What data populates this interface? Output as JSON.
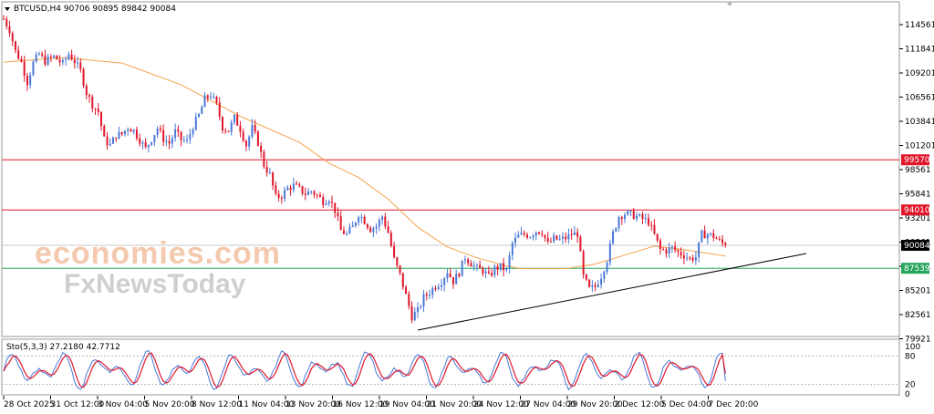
{
  "header": {
    "symbol_line": "BTCUSD,H4  90706 90895 89842 90084"
  },
  "watermark": {
    "line1": "economies.com",
    "line2": "FxNewsToday"
  },
  "oscillator": {
    "label": "Sto(5,3,3) 27.2180 42.7712",
    "levels": [
      "100",
      "80",
      "20",
      "0"
    ]
  },
  "price_axis": {
    "ticks": [
      "114561",
      "111841",
      "109201",
      "106561",
      "103841",
      "101201",
      "98561",
      "95841",
      "93201",
      "90561",
      "87841",
      "85201",
      "82561",
      "79921"
    ],
    "tags": [
      {
        "label": "99570",
        "value": 99570,
        "color": "#e0162b"
      },
      {
        "label": "94010",
        "value": 94010,
        "color": "#e0162b"
      },
      {
        "label": "90084",
        "value": 90084,
        "color": "#000000"
      },
      {
        "label": "87539",
        "value": 87539,
        "color": "#26a65b"
      }
    ]
  },
  "time_axis": {
    "labels": [
      "28 Oct 2025",
      "31 Oct 12:00",
      "3 Nov 04:00",
      "5 Nov 20:00",
      "8 Nov 12:00",
      "11 Nov 04:00",
      "13 Nov 20:00",
      "16 Nov 12:00",
      "19 Nov 04:00",
      "21 Nov 20:00",
      "24 Nov 12:00",
      "27 Nov 04:00",
      "29 Nov 20:00",
      "2 Dec 12:00",
      "5 Dec 04:00",
      "7 Dec 20:00"
    ]
  },
  "chart_data": {
    "type": "candlestick",
    "timeframe": "H4",
    "horizontal_lines": [
      {
        "value": 99570,
        "color": "#e0162b"
      },
      {
        "value": 94010,
        "color": "#e0162b"
      },
      {
        "value": 87539,
        "color": "#26a65b"
      }
    ],
    "trendline": {
      "from": {
        "date": "20 Nov 2025",
        "price": 80400
      },
      "to": {
        "date": "9 Dec 2025",
        "price": 88800
      }
    },
    "close_path": [
      [
        0,
        115200
      ],
      [
        2,
        114000
      ],
      [
        4,
        111600
      ],
      [
        6,
        110400
      ],
      [
        8,
        108200
      ],
      [
        10,
        110300
      ],
      [
        12,
        111300
      ],
      [
        14,
        110500
      ],
      [
        17,
        111000
      ],
      [
        20,
        110200
      ],
      [
        22,
        111300
      ],
      [
        24,
        110500
      ],
      [
        26,
        109400
      ],
      [
        28,
        107000
      ],
      [
        30,
        105700
      ],
      [
        32,
        104900
      ],
      [
        34,
        101800
      ],
      [
        36,
        101200
      ],
      [
        38,
        102300
      ],
      [
        40,
        102400
      ],
      [
        42,
        103200
      ],
      [
        44,
        102800
      ],
      [
        46,
        101800
      ],
      [
        48,
        100800
      ],
      [
        50,
        101900
      ],
      [
        52,
        103100
      ],
      [
        54,
        101900
      ],
      [
        56,
        101400
      ],
      [
        58,
        102700
      ],
      [
        60,
        101800
      ],
      [
        62,
        101600
      ],
      [
        64,
        103300
      ],
      [
        66,
        104500
      ],
      [
        68,
        106300
      ],
      [
        70,
        106800
      ],
      [
        72,
        105600
      ],
      [
        74,
        103200
      ],
      [
        76,
        102800
      ],
      [
        78,
        104200
      ],
      [
        80,
        103000
      ],
      [
        82,
        101200
      ],
      [
        84,
        103100
      ],
      [
        86,
        101500
      ],
      [
        88,
        99000
      ],
      [
        90,
        97900
      ],
      [
        92,
        95400
      ],
      [
        94,
        95600
      ],
      [
        96,
        96400
      ],
      [
        98,
        96700
      ],
      [
        100,
        96300
      ],
      [
        102,
        95800
      ],
      [
        104,
        96100
      ],
      [
        106,
        95600
      ],
      [
        108,
        95000
      ],
      [
        110,
        95300
      ],
      [
        112,
        94000
      ],
      [
        114,
        91700
      ],
      [
        116,
        91300
      ],
      [
        118,
        92100
      ],
      [
        120,
        93600
      ],
      [
        122,
        92800
      ],
      [
        124,
        91900
      ],
      [
        126,
        92200
      ],
      [
        128,
        93300
      ],
      [
        130,
        91500
      ],
      [
        132,
        88500
      ],
      [
        134,
        86800
      ],
      [
        136,
        84500
      ],
      [
        138,
        82200
      ],
      [
        140,
        82800
      ],
      [
        142,
        84300
      ],
      [
        144,
        84900
      ],
      [
        146,
        85600
      ],
      [
        148,
        86100
      ],
      [
        150,
        87200
      ],
      [
        152,
        86100
      ],
      [
        154,
        87100
      ],
      [
        156,
        88800
      ],
      [
        158,
        88100
      ],
      [
        160,
        87500
      ],
      [
        162,
        87300
      ],
      [
        164,
        86600
      ],
      [
        166,
        87500
      ],
      [
        168,
        87700
      ],
      [
        170,
        87300
      ],
      [
        172,
        90300
      ],
      [
        174,
        91100
      ],
      [
        176,
        91300
      ],
      [
        178,
        91200
      ],
      [
        180,
        91700
      ],
      [
        182,
        91600
      ],
      [
        184,
        90200
      ],
      [
        186,
        90800
      ],
      [
        188,
        90700
      ],
      [
        190,
        90900
      ],
      [
        192,
        91300
      ],
      [
        194,
        91400
      ],
      [
        196,
        86600
      ],
      [
        198,
        85200
      ],
      [
        200,
        85500
      ],
      [
        202,
        86700
      ],
      [
        204,
        88500
      ],
      [
        206,
        91400
      ],
      [
        208,
        93300
      ],
      [
        210,
        93600
      ],
      [
        212,
        93500
      ],
      [
        214,
        93300
      ],
      [
        216,
        93000
      ],
      [
        218,
        92700
      ],
      [
        220,
        91200
      ],
      [
        222,
        89600
      ],
      [
        224,
        89500
      ],
      [
        226,
        89800
      ],
      [
        228,
        89300
      ],
      [
        230,
        89000
      ],
      [
        232,
        88600
      ],
      [
        234,
        88800
      ],
      [
        236,
        91300
      ],
      [
        238,
        91300
      ],
      [
        240,
        91100
      ],
      [
        242,
        90500
      ],
      [
        244,
        90084
      ]
    ],
    "moving_average_path": [
      [
        0,
        110400
      ],
      [
        20,
        110900
      ],
      [
        40,
        110300
      ],
      [
        60,
        107900
      ],
      [
        80,
        104400
      ],
      [
        100,
        101500
      ],
      [
        110,
        99200
      ],
      [
        120,
        97600
      ],
      [
        130,
        95200
      ],
      [
        140,
        92100
      ],
      [
        150,
        89900
      ],
      [
        160,
        88700
      ],
      [
        170,
        87800
      ],
      [
        175,
        87500
      ],
      [
        190,
        87500
      ],
      [
        200,
        88000
      ],
      [
        210,
        89000
      ],
      [
        220,
        90000
      ],
      [
        230,
        89600
      ],
      [
        240,
        89100
      ],
      [
        244,
        88900
      ]
    ],
    "stochastic": {
      "params": "5,3,3",
      "main_value": 27.218,
      "signal_value": 42.7712,
      "levels": [
        80,
        20
      ]
    }
  }
}
